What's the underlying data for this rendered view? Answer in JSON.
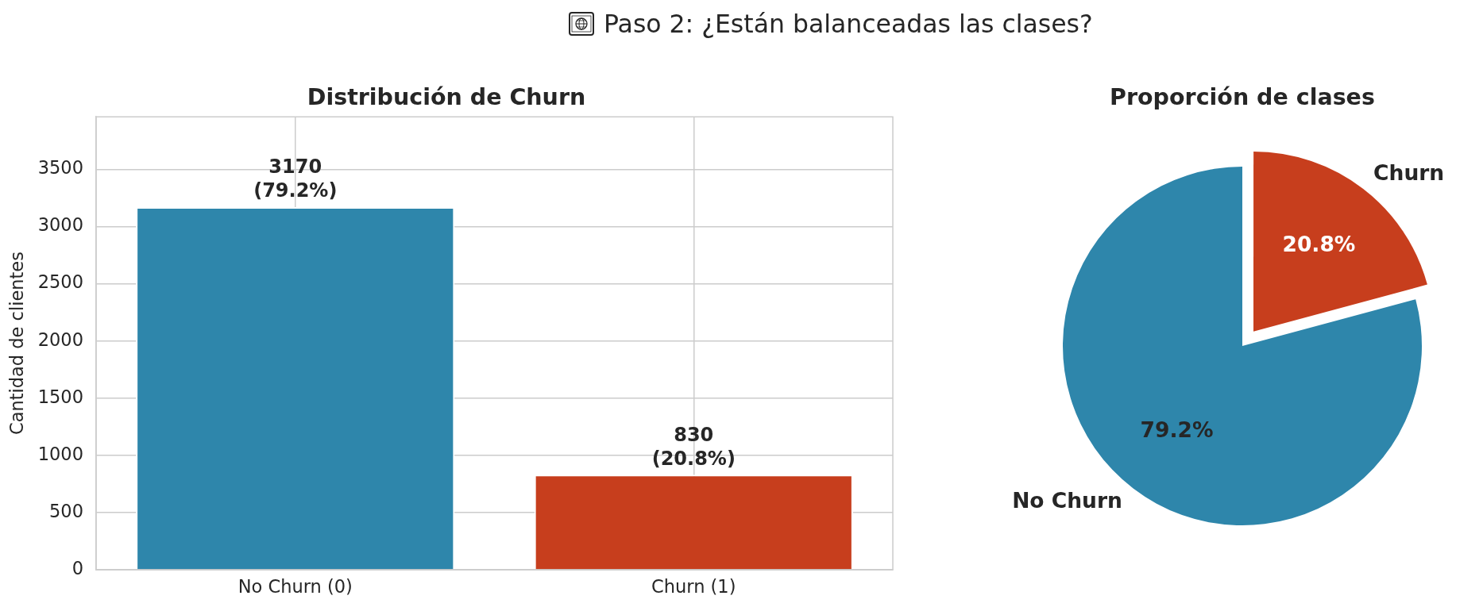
{
  "chart_data": [
    {
      "type": "other",
      "title": "Paso 2: ¿Están balanceadas las clases?"
    },
    {
      "type": "bar",
      "title": "Distribución de Churn",
      "ylabel": "Cantidad de clientes",
      "categories": [
        "No Churn (0)",
        "Churn (1)"
      ],
      "values": [
        3170,
        830
      ],
      "colors": [
        "#2e86ab",
        "#c73e1d"
      ],
      "value_labels": [
        "3170\n(79.2%)",
        "830\n(20.8%)"
      ],
      "ylim": [
        0,
        3960
      ],
      "yticks": [
        0,
        500,
        1000,
        1500,
        2000,
        2500,
        3000,
        3500
      ],
      "grid": true
    },
    {
      "type": "pie",
      "title": "Proporción de clases",
      "categories": [
        "No Churn",
        "Churn"
      ],
      "values": [
        79.2,
        20.8
      ],
      "colors": [
        "#2e86ab",
        "#c73e1d"
      ],
      "value_labels": [
        "79.2%",
        "20.8%"
      ]
    }
  ]
}
